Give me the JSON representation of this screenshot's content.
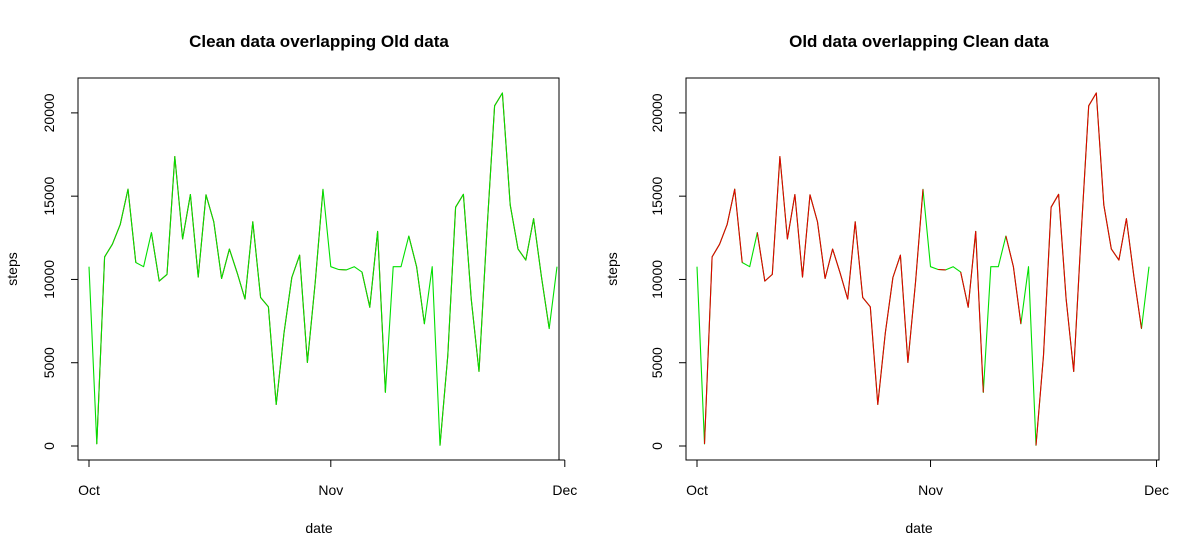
{
  "colors": {
    "clean": "#00e000",
    "old": "#e00000"
  },
  "shared": {
    "x_dates": [
      "2012-10-01",
      "2012-10-02",
      "2012-10-03",
      "2012-10-04",
      "2012-10-05",
      "2012-10-06",
      "2012-10-07",
      "2012-10-08",
      "2012-10-09",
      "2012-10-10",
      "2012-10-11",
      "2012-10-12",
      "2012-10-13",
      "2012-10-14",
      "2012-10-15",
      "2012-10-16",
      "2012-10-17",
      "2012-10-18",
      "2012-10-19",
      "2012-10-20",
      "2012-10-21",
      "2012-10-22",
      "2012-10-23",
      "2012-10-24",
      "2012-10-25",
      "2012-10-26",
      "2012-10-27",
      "2012-10-28",
      "2012-10-29",
      "2012-10-30",
      "2012-10-31",
      "2012-11-01",
      "2012-11-02",
      "2012-11-03",
      "2012-11-04",
      "2012-11-05",
      "2012-11-06",
      "2012-11-07",
      "2012-11-08",
      "2012-11-09",
      "2012-11-10",
      "2012-11-11",
      "2012-11-12",
      "2012-11-13",
      "2012-11-14",
      "2012-11-15",
      "2012-11-16",
      "2012-11-17",
      "2012-11-18",
      "2012-11-19",
      "2012-11-20",
      "2012-11-21",
      "2012-11-22",
      "2012-11-23",
      "2012-11-24",
      "2012-11-25",
      "2012-11-26",
      "2012-11-27",
      "2012-11-28",
      "2012-11-29",
      "2012-11-30"
    ],
    "clean_steps": [
      10766,
      126,
      11352,
      12116,
      13294,
      15420,
      11015,
      10766,
      12811,
      9900,
      10304,
      17382,
      12426,
      15098,
      10139,
      15084,
      13452,
      10056,
      11829,
      10395,
      8821,
      13460,
      8918,
      8355,
      2492,
      6778,
      10119,
      11458,
      5018,
      9819,
      15414,
      10766,
      10600,
      10571,
      10766,
      10439,
      8334,
      12883,
      3219,
      10766,
      10766,
      12608,
      10765,
      7336,
      10766,
      41,
      5441,
      14339,
      15110,
      8841,
      4472,
      12787,
      20427,
      21194,
      14478,
      11834,
      11162,
      13646,
      10183,
      7047,
      10766
    ],
    "old_steps": [
      null,
      126,
      11352,
      12116,
      13294,
      15420,
      11015,
      null,
      12811,
      9900,
      10304,
      17382,
      12426,
      15098,
      10139,
      15084,
      13452,
      10056,
      11829,
      10395,
      8821,
      13460,
      8918,
      8355,
      2492,
      6778,
      10119,
      11458,
      5018,
      9819,
      15414,
      null,
      10600,
      10571,
      null,
      10439,
      8334,
      12883,
      3219,
      null,
      null,
      12608,
      10765,
      7336,
      null,
      41,
      5441,
      14339,
      15110,
      8841,
      4472,
      12787,
      20427,
      21194,
      14478,
      11834,
      11162,
      13646,
      10183,
      7047,
      null
    ]
  },
  "chart_data": [
    {
      "type": "line",
      "title": "Clean data overlapping Old data",
      "xlabel": "date",
      "ylabel": "steps",
      "x_ticks": [
        "Oct",
        "Nov",
        "Dec"
      ],
      "x_tick_dates": [
        "2012-10-01",
        "2012-11-01",
        "2012-12-01"
      ],
      "y_ticks": [
        0,
        5000,
        10000,
        15000,
        20000
      ],
      "ylim": [
        0,
        21194
      ],
      "xlim": [
        "2012-10-01",
        "2012-11-30"
      ],
      "draw_order": [
        "old",
        "clean"
      ],
      "series": [
        {
          "key": "old",
          "color": "#e00000"
        },
        {
          "key": "clean",
          "color": "#00e000"
        }
      ]
    },
    {
      "type": "line",
      "title": "Old data overlapping Clean data",
      "xlabel": "date",
      "ylabel": "steps",
      "x_ticks": [
        "Oct",
        "Nov",
        "Dec"
      ],
      "x_tick_dates": [
        "2012-10-01",
        "2012-11-01",
        "2012-12-01"
      ],
      "y_ticks": [
        0,
        5000,
        10000,
        15000,
        20000
      ],
      "ylim": [
        0,
        21194
      ],
      "xlim": [
        "2012-10-01",
        "2012-11-30"
      ],
      "draw_order": [
        "clean",
        "old"
      ],
      "series": [
        {
          "key": "clean",
          "color": "#00e000"
        },
        {
          "key": "old",
          "color": "#e00000"
        }
      ]
    }
  ]
}
